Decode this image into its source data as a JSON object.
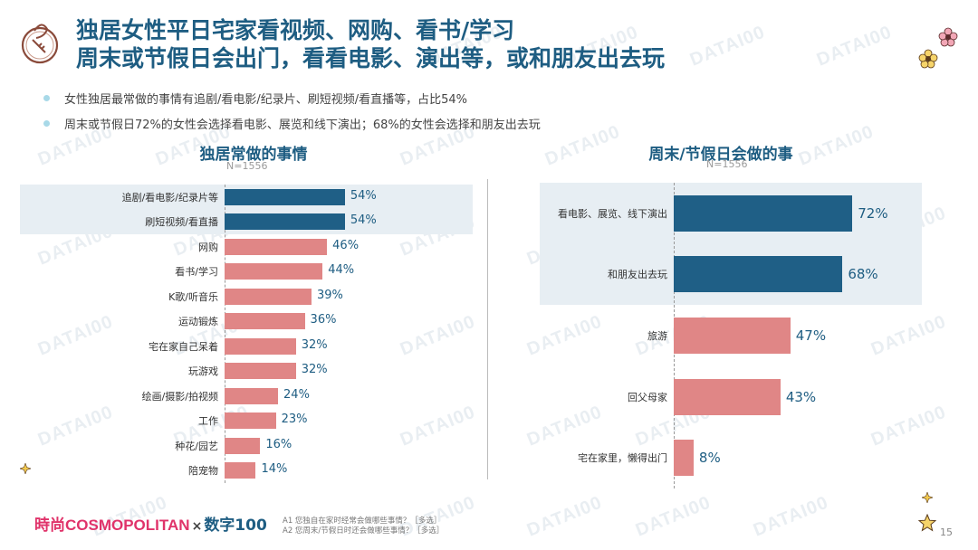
{
  "header": {
    "title_line1": "独居女性平日宅家看视频、网购、看书/学习",
    "title_line2": "周末或节假日会出门，看看电影、演出等，或和朋友出去玩"
  },
  "bullets": [
    "女性独居最常做的事情有追剧/看电影/纪录片、刷短视频/看直播等，占比54%",
    "周末或节假日72%的女性会选择看电影、展览和线下演出；68%的女性会选择和朋友出去玩"
  ],
  "colors": {
    "highlight_bar": "#1f5f86",
    "normal_bar": "#e08686",
    "title": "#1e5d82"
  },
  "chart_data": [
    {
      "type": "bar",
      "orientation": "horizontal",
      "title": "独居常做的事情",
      "subtitle": "N=1556",
      "categories": [
        "追剧/看电影/纪录片等",
        "刷短视频/看直播",
        "网购",
        "看书/学习",
        "K歌/听音乐",
        "运动锻炼",
        "宅在家自己呆着",
        "玩游戏",
        "绘画/摄影/拍视频",
        "工作",
        "种花/园艺",
        "陪宠物"
      ],
      "values": [
        54,
        54,
        46,
        44,
        39,
        36,
        32,
        32,
        24,
        23,
        16,
        14
      ],
      "labels": [
        "54%",
        "54%",
        "46%",
        "44%",
        "39%",
        "36%",
        "32%",
        "32%",
        "24%",
        "23%",
        "16%",
        "14%"
      ],
      "highlighted": [
        0,
        1
      ],
      "xlim": [
        0,
        100
      ]
    },
    {
      "type": "bar",
      "orientation": "horizontal",
      "title": "周末/节假日会做的事",
      "subtitle": "N=1556",
      "categories": [
        "看电影、展览、线下演出",
        "和朋友出去玩",
        "旅游",
        "回父母家",
        "宅在家里，懒得出门"
      ],
      "values": [
        72,
        68,
        47,
        43,
        8
      ],
      "labels": [
        "72%",
        "68%",
        "47%",
        "43%",
        "8%"
      ],
      "highlighted": [
        0,
        1
      ],
      "xlim": [
        0,
        100
      ]
    }
  ],
  "footer": {
    "brand_left": "時尚COSMOPOLITAN",
    "brand_x": "×",
    "brand_right": "数字100",
    "note1": "A1 您独自在家时经常会做哪些事情？［多选］",
    "note2": "A2 您周末/节假日时还会做哪些事情？［多选］",
    "page_number": "15"
  },
  "watermark": "DATAI00"
}
